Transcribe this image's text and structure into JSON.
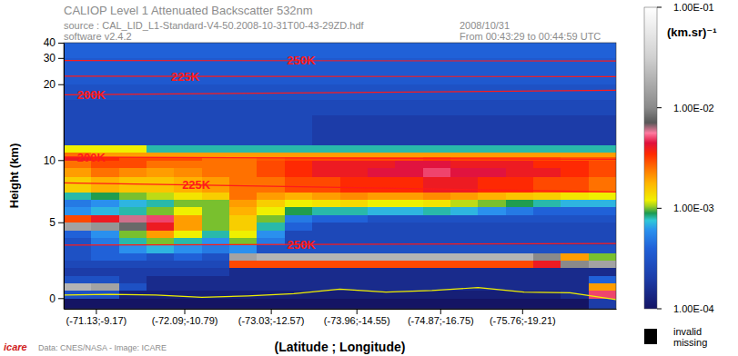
{
  "chart_data": {
    "type": "heatmap",
    "title": "CALIOP Level 1 Attenuated Backscatter 532nm",
    "annotations": [
      "source : CAL_LID_L1-Standard-V4-50.2008-10-31T00-43-29ZD.hdf",
      "software v2.4.2",
      "2008/10/31",
      "From 00:43:29 to 00:44:59 UTC",
      "Data: CNES/NASA - Image: ICARE",
      "icare"
    ],
    "x_label": "(Latitude ; Longitude)",
    "y_label": "Height (km)",
    "xlim": [
      -70.78,
      -76.78
    ],
    "xticks": [
      {
        "value": -71.13,
        "label": "(-71.13;-9.17)"
      },
      {
        "value": -72.09,
        "label": "(-72.09;-10.79)"
      },
      {
        "value": -73.03,
        "label": "(-73.03;-12.57)"
      },
      {
        "value": -73.96,
        "label": "(-73.96;-14.55)"
      },
      {
        "value": -74.87,
        "label": "(-74.87;-16.75)"
      },
      {
        "value": -75.76,
        "label": "(-75.76;-19.21)"
      }
    ],
    "ylim": [
      -0.7,
      40
    ],
    "yticks": [
      0,
      5,
      10,
      20,
      30,
      40
    ],
    "x_edges": [
      -70.78,
      -71.08,
      -71.38,
      -71.68,
      -71.98,
      -72.28,
      -72.58,
      -72.88,
      -73.18,
      -73.48,
      -73.78,
      -74.08,
      -74.38,
      -74.68,
      -74.98,
      -75.28,
      -75.58,
      -75.88,
      -76.18,
      -76.48,
      -76.78
    ],
    "y_edges": [
      -0.7,
      0,
      0.5,
      1,
      1.5,
      2,
      2.5,
      3,
      3.5,
      4,
      4.5,
      5,
      5.5,
      6,
      6.5,
      7,
      8,
      9,
      10,
      10.5,
      11,
      12,
      14,
      16,
      18,
      20,
      30,
      40
    ],
    "cells": [
      [
        0.0001,
        0.0001,
        0.0001,
        0.0001,
        0.0001,
        0.0001,
        0.0001,
        0.0001,
        0.0001,
        0.0001,
        0.0001,
        0.0001,
        0.0001,
        0.0001,
        0.0001,
        0.0001,
        0.0001,
        0.0001,
        0.0001,
        0.0002
      ],
      [
        0.0003,
        0.0003,
        0.00012,
        0.00012,
        0.00012,
        0.00012,
        0.00012,
        0.00012,
        0.00012,
        0.00012,
        0.00012,
        0.00012,
        0.00012,
        0.00012,
        0.00012,
        0.00012,
        0.00012,
        0.00012,
        0.00015,
        0.005
      ],
      [
        0.02,
        0.015,
        0.0003,
        0.00015,
        0.00015,
        0.00015,
        0.00015,
        0.00015,
        0.00015,
        0.00015,
        0.00015,
        0.00015,
        0.00015,
        0.00015,
        0.00015,
        0.00015,
        0.00015,
        0.00015,
        0.00015,
        0.002
      ],
      [
        0.0003,
        0.0003,
        0.0002,
        0.00015,
        0.00015,
        0.00015,
        0.00015,
        0.00015,
        0.00015,
        0.00015,
        0.00015,
        0.00015,
        0.00015,
        0.00015,
        0.00015,
        0.00015,
        0.00015,
        0.00015,
        0.00015,
        0.0004
      ],
      [
        0.0002,
        0.0002,
        0.0002,
        0.0002,
        0.0002,
        0.0002,
        0.00015,
        0.00015,
        0.00015,
        0.00015,
        0.00015,
        0.00015,
        0.00015,
        0.00015,
        0.00015,
        0.00015,
        0.00015,
        0.00015,
        0.00015,
        0.00015
      ],
      [
        0.00025,
        0.00025,
        0.00025,
        0.00025,
        0.00025,
        0.00025,
        0.003,
        0.003,
        0.003,
        0.003,
        0.003,
        0.003,
        0.003,
        0.003,
        0.003,
        0.003,
        0.003,
        0.004,
        0.01,
        0.015
      ],
      [
        0.0003,
        0.0004,
        0.0004,
        0.0003,
        0.0004,
        0.0003,
        0.015,
        0.02,
        0.02,
        0.02,
        0.02,
        0.02,
        0.02,
        0.02,
        0.02,
        0.02,
        0.02,
        0.01,
        0.002,
        0.001
      ],
      [
        0.0003,
        0.0004,
        0.0006,
        0.0007,
        0.0006,
        0.0005,
        0.0006,
        0.0003,
        0.0003,
        0.0003,
        0.0003,
        0.0003,
        0.0003,
        0.0003,
        0.0003,
        0.0003,
        0.0003,
        0.0003,
        0.0003,
        0.0003
      ],
      [
        0.0003,
        0.0005,
        0.0008,
        0.001,
        0.0008,
        0.0006,
        0.001,
        0.0005,
        0.00025,
        0.00025,
        0.00025,
        0.00025,
        0.00025,
        0.00025,
        0.00025,
        0.00025,
        0.00025,
        0.00025,
        0.00025,
        0.00025
      ],
      [
        0.0004,
        0.0006,
        0.001,
        0.002,
        0.0012,
        0.0008,
        0.0012,
        0.0006,
        0.00025,
        0.00025,
        0.00025,
        0.00025,
        0.00025,
        0.00025,
        0.00025,
        0.00025,
        0.00025,
        0.00025,
        0.00025,
        0.00025
      ],
      [
        0.015,
        0.012,
        0.008,
        0.004,
        0.002,
        0.001,
        0.0015,
        0.0008,
        0.0004,
        0.00025,
        0.00025,
        0.00025,
        0.00025,
        0.00025,
        0.00025,
        0.00025,
        0.00025,
        0.00025,
        0.00025,
        0.00025
      ],
      [
        0.003,
        0.004,
        0.006,
        0.005,
        0.002,
        0.001,
        0.0015,
        0.001,
        0.0005,
        0.0004,
        0.0004,
        0.0003,
        0.0003,
        0.0003,
        0.0003,
        0.0003,
        0.0003,
        0.0003,
        0.0003,
        0.0003
      ],
      [
        0.0006,
        0.0007,
        0.0008,
        0.001,
        0.0012,
        0.001,
        0.0018,
        0.0012,
        0.0009,
        0.0008,
        0.0008,
        0.0007,
        0.0007,
        0.0008,
        0.0007,
        0.0006,
        0.0005,
        0.0004,
        0.0004,
        0.0004
      ],
      [
        0.0005,
        0.0006,
        0.0007,
        0.0008,
        0.001,
        0.001,
        0.002,
        0.0015,
        0.0012,
        0.0013,
        0.0014,
        0.0012,
        0.0012,
        0.0013,
        0.0011,
        0.001,
        0.0009,
        0.0008,
        0.0007,
        0.0007
      ],
      [
        0.0008,
        0.0009,
        0.001,
        0.0011,
        0.0013,
        0.0015,
        0.0025,
        0.002,
        0.0018,
        0.002,
        0.0022,
        0.002,
        0.002,
        0.0022,
        0.002,
        0.0018,
        0.0016,
        0.0015,
        0.0013,
        0.0012
      ],
      [
        0.0015,
        0.0018,
        0.0016,
        0.0016,
        0.0018,
        0.002,
        0.0025,
        0.0025,
        0.003,
        0.003,
        0.0035,
        0.0035,
        0.0035,
        0.004,
        0.004,
        0.0035,
        0.0035,
        0.003,
        0.003,
        0.0025
      ],
      [
        0.002,
        0.0025,
        0.0022,
        0.002,
        0.0022,
        0.0025,
        0.0025,
        0.003,
        0.0035,
        0.004,
        0.004,
        0.0045,
        0.0045,
        0.005,
        0.0045,
        0.0045,
        0.004,
        0.004,
        0.0035,
        0.003
      ],
      [
        0.0025,
        0.003,
        0.003,
        0.0025,
        0.0025,
        0.0025,
        0.0025,
        0.003,
        0.0035,
        0.004,
        0.004,
        0.004,
        0.0045,
        0.0045,
        0.004,
        0.004,
        0.004,
        0.0035,
        0.0035,
        0.003
      ],
      [
        0.004,
        0.0035,
        0.003,
        0.003,
        0.003,
        0.0025,
        0.0025,
        0.0028,
        0.003,
        0.003,
        0.003,
        0.003,
        0.003,
        0.0032,
        0.003,
        0.003,
        0.003,
        0.003,
        0.0028,
        0.0028
      ],
      [
        0.0025,
        0.002,
        0.002,
        0.002,
        0.002,
        0.002,
        0.002,
        0.002,
        0.002,
        0.002,
        0.002,
        0.002,
        0.002,
        0.002,
        0.002,
        0.002,
        0.002,
        0.002,
        0.002,
        0.002
      ],
      [
        0.0012,
        0.0012,
        0.0012,
        0.0008,
        0.0008,
        0.0008,
        0.0008,
        0.0008,
        0.0008,
        0.0008,
        0.0008,
        0.0008,
        0.0008,
        0.0008,
        0.0008,
        0.0008,
        0.0008,
        0.0008,
        0.0008,
        0.0008
      ],
      [
        0.00025,
        0.00025,
        0.00025,
        0.00025,
        0.00025,
        0.00025,
        0.00025,
        0.00025,
        0.00025,
        0.0002,
        0.0002,
        0.0002,
        0.0002,
        0.0002,
        0.0002,
        0.0002,
        0.0002,
        0.0002,
        0.0002,
        0.0002
      ],
      [
        0.00025,
        0.00025,
        0.00025,
        0.00025,
        0.00025,
        0.00025,
        0.00025,
        0.00025,
        0.00025,
        0.0002,
        0.0002,
        0.0002,
        0.0002,
        0.0002,
        0.0002,
        0.0002,
        0.0002,
        0.0002,
        0.0002,
        0.0002
      ],
      [
        0.00025,
        0.00025,
        0.00025,
        0.00025,
        0.00025,
        0.00025,
        0.00025,
        0.00025,
        0.00025,
        0.00025,
        0.00025,
        0.00025,
        0.00025,
        0.00025,
        0.00025,
        0.00025,
        0.00025,
        0.00025,
        0.00025,
        0.00025
      ],
      [
        0.0003,
        0.0003,
        0.0003,
        0.0003,
        0.0003,
        0.0003,
        0.0003,
        0.0003,
        0.0003,
        0.0003,
        0.0003,
        0.0003,
        0.0003,
        0.0003,
        0.0003,
        0.0003,
        0.0003,
        0.0003,
        0.0003,
        0.0003
      ],
      [
        0.00035,
        0.00035,
        0.00035,
        0.00035,
        0.00035,
        0.00035,
        0.00035,
        0.00035,
        0.00035,
        0.00035,
        0.00035,
        0.00035,
        0.00035,
        0.00035,
        0.00035,
        0.00035,
        0.00035,
        0.00035,
        0.00035,
        0.00035
      ],
      [
        0.0004,
        0.0004,
        0.0004,
        0.0004,
        0.0004,
        0.0004,
        0.0004,
        0.0004,
        0.0004,
        0.0004,
        0.0004,
        0.0004,
        0.0004,
        0.0004,
        0.0004,
        0.0004,
        0.0004,
        0.0004,
        0.0004,
        0.0004
      ]
    ],
    "colorbar": {
      "title": "(km.sr)⁻¹",
      "log": true,
      "range": [
        0.0001,
        0.1
      ],
      "ticks": [
        {
          "value": 0.1,
          "label": "1.00E-01"
        },
        {
          "value": 0.01,
          "label": "1.00E-02"
        },
        {
          "value": 0.001,
          "label": "1.00E-03"
        },
        {
          "value": 0.0001,
          "label": "1.00E-04"
        }
      ]
    },
    "missing_legend": {
      "color": "#000000",
      "labels": [
        "invalid",
        "missing"
      ]
    },
    "series": [
      {
        "name": "250K",
        "type": "line",
        "color": "#ff1a1a",
        "x": [
          -70.78,
          -76.78
        ],
        "values": [
          29.0,
          28.8
        ]
      },
      {
        "name": "225K",
        "type": "line",
        "color": "#ff1a1a",
        "x": [
          -70.78,
          -76.78
        ],
        "values": [
          22.8,
          22.6
        ]
      },
      {
        "name": "200K",
        "type": "line",
        "color": "#ff1a1a",
        "x": [
          -70.78,
          -76.78
        ],
        "values": [
          18.6,
          19.2
        ]
      },
      {
        "name": "200K",
        "type": "line",
        "color": "#ff1a1a",
        "x": [
          -70.78,
          -76.78
        ],
        "values": [
          10.4,
          10.1
        ]
      },
      {
        "name": "225K",
        "type": "line",
        "color": "#ff1a1a",
        "x": [
          -70.78,
          -76.78
        ],
        "values": [
          7.6,
          7.0
        ]
      },
      {
        "name": "250K",
        "type": "line",
        "color": "#ff1a1a",
        "x": [
          -70.78,
          -76.78
        ],
        "values": [
          3.5,
          3.6
        ]
      },
      {
        "type": "line",
        "color": "#f0f000",
        "x": [
          -70.78,
          -71.28,
          -71.78,
          -72.28,
          -72.78,
          -73.28,
          -73.78,
          -74.28,
          -74.78,
          -75.28,
          -75.78,
          -76.28,
          -76.78
        ],
        "values": [
          0.2,
          0.25,
          0.2,
          0.05,
          0.15,
          0.3,
          0.6,
          0.4,
          0.5,
          0.7,
          0.4,
          0.35,
          -0.1
        ]
      }
    ]
  }
}
